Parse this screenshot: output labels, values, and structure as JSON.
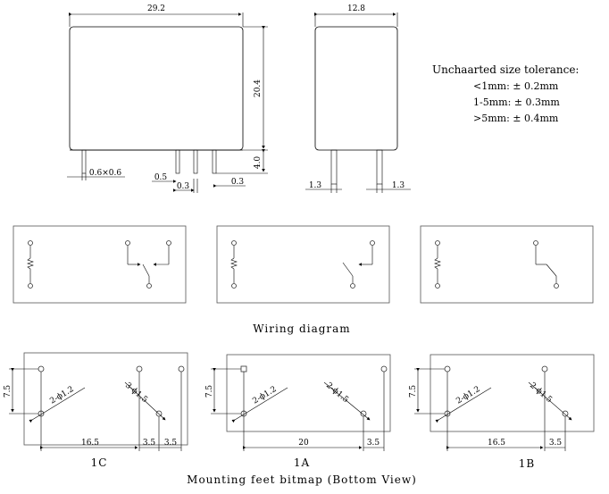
{
  "top_view": {
    "width_label": "29.2",
    "height_label": "20.4",
    "pin_length_label": "4.0",
    "pin_section_label": "0.6×0.6",
    "pin_spacing_a": "0.5",
    "pin_spacing_b": "0.3",
    "pin_spacing_c": "0.3"
  },
  "side_view": {
    "width_label": "12.8",
    "left_offset": "1.3",
    "right_offset": "1.3"
  },
  "tolerance": {
    "title": "Unchaarted size tolerance:",
    "lines": [
      "<1mm: ± 0.2mm",
      "1-5mm: ± 0.3mm",
      ">5mm: ± 0.4mm"
    ]
  },
  "wiring": {
    "caption": "Wiring diagram"
  },
  "mounting": {
    "caption": "Mounting feet bitmap (Bottom View)",
    "panels": [
      {
        "name": "1C",
        "height_label": "7.5",
        "hole_a": "2-ϕ1.2",
        "hole_b": "3-ϕ1.5",
        "dim_a": "16.5",
        "dim_b": "3.5",
        "dim_c": "3.5"
      },
      {
        "name": "1A",
        "height_label": "7.5",
        "hole_a": "2-ϕ1.2",
        "hole_b": "2-ϕ1.5",
        "dim_a": "20",
        "dim_b": "3.5"
      },
      {
        "name": "1B",
        "height_label": "7.5",
        "hole_a": "2-ϕ1.2",
        "hole_b": "2-ϕ1.5",
        "dim_a": "16.5",
        "dim_b": "3.5"
      }
    ]
  }
}
